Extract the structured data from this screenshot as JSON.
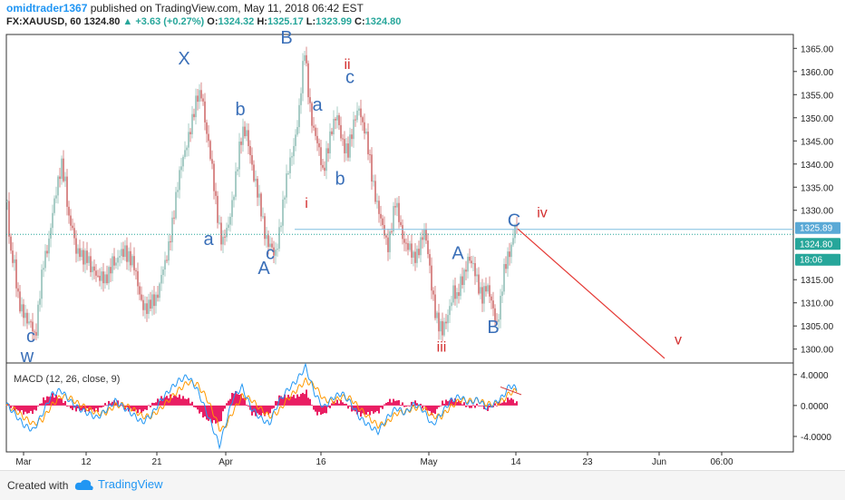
{
  "header": {
    "user": "omidtrader1367",
    "published": "published on TradingView.com, May 11, 2018 06:42 EST",
    "symbol": "FX:XAUUSD, 60",
    "last": "1324.80",
    "arrow": "▲",
    "change": "+3.63 (+0.27%)",
    "o_label": "O:",
    "o": "1324.32",
    "h_label": "H:",
    "h": "1325.17",
    "l_label": "L:",
    "l": "1323.99",
    "c_label": "C:",
    "c": "1324.80"
  },
  "footer": {
    "created_with": "Created with",
    "brand": "TradingView"
  },
  "colors": {
    "wave_blue": "#3a6fb8",
    "wave_red": "#d32f2f",
    "candle_up": "#a8ccc6",
    "candle_down": "#d98b8b",
    "level_line": "#7fbfe0",
    "price_dotted": "#26a69a",
    "macd_line": "#2196f3",
    "signal_line": "#ff9800",
    "hist": "#e91e63"
  },
  "chart_data": {
    "type": "candlestick",
    "symbol": "FX:XAUUSD",
    "interval": "60",
    "ylim": [
      1297,
      1368
    ],
    "y_ticks": [
      "1365.00",
      "1360.00",
      "1355.00",
      "1350.00",
      "1345.00",
      "1340.00",
      "1335.00",
      "1330.00",
      "1325.89",
      "1324.80",
      "1318:06",
      "1315.00",
      "1310.00",
      "1305.00",
      "1300.00"
    ],
    "x_ticks": [
      "Mar",
      "12",
      "21",
      "Apr",
      "16",
      "May",
      "14",
      "23",
      "Jun",
      "06:00"
    ],
    "price_markers": [
      {
        "label": "1325.89",
        "value": 1325.89,
        "color": "#5aa9d6"
      },
      {
        "label": "1324.80",
        "value": 1324.8,
        "color": "#26a69a"
      },
      {
        "label": "18:06",
        "value": 1320.0,
        "color": "#26a69a"
      }
    ],
    "horizontal_level": 1325.89,
    "price_path": [
      [
        0,
        1332
      ],
      [
        3,
        1320
      ],
      [
        8,
        1318
      ],
      [
        12,
        1312
      ],
      [
        17,
        1308
      ],
      [
        22,
        1305
      ],
      [
        27,
        1306
      ],
      [
        31,
        1303
      ],
      [
        35,
        1310
      ],
      [
        40,
        1318
      ],
      [
        45,
        1323
      ],
      [
        50,
        1330
      ],
      [
        55,
        1334
      ],
      [
        60,
        1340
      ],
      [
        64,
        1337
      ],
      [
        68,
        1328
      ],
      [
        72,
        1325
      ],
      [
        76,
        1321
      ],
      [
        80,
        1322
      ],
      [
        84,
        1320
      ],
      [
        88,
        1319
      ],
      [
        92,
        1317
      ],
      [
        96,
        1318
      ],
      [
        100,
        1316
      ],
      [
        104,
        1315
      ],
      [
        108,
        1314
      ],
      [
        112,
        1317
      ],
      [
        116,
        1320
      ],
      [
        120,
        1318
      ],
      [
        125,
        1320
      ],
      [
        130,
        1322
      ],
      [
        135,
        1320
      ],
      [
        140,
        1317
      ],
      [
        145,
        1313
      ],
      [
        150,
        1310
      ],
      [
        155,
        1308
      ],
      [
        160,
        1310
      ],
      [
        165,
        1312
      ],
      [
        170,
        1316
      ],
      [
        175,
        1318
      ],
      [
        178,
        1322
      ],
      [
        182,
        1328
      ],
      [
        186,
        1333
      ],
      [
        190,
        1337
      ],
      [
        195,
        1342
      ],
      [
        200,
        1347
      ],
      [
        205,
        1350
      ],
      [
        210,
        1354
      ],
      [
        215,
        1356
      ],
      [
        218,
        1350
      ],
      [
        222,
        1344
      ],
      [
        226,
        1338
      ],
      [
        230,
        1332
      ],
      [
        234,
        1327
      ],
      [
        237,
        1323
      ],
      [
        240,
        1324
      ],
      [
        244,
        1326
      ],
      [
        248,
        1332
      ],
      [
        252,
        1338
      ],
      [
        256,
        1343
      ],
      [
        260,
        1346
      ],
      [
        264,
        1347
      ],
      [
        268,
        1343
      ],
      [
        272,
        1337
      ],
      [
        276,
        1333
      ],
      [
        280,
        1330
      ],
      [
        284,
        1326
      ],
      [
        288,
        1323
      ],
      [
        292,
        1321
      ],
      [
        295,
        1319
      ],
      [
        298,
        1323
      ],
      [
        302,
        1329
      ],
      [
        306,
        1334
      ],
      [
        310,
        1338
      ],
      [
        314,
        1342
      ],
      [
        318,
        1347
      ],
      [
        322,
        1352
      ],
      [
        326,
        1360
      ],
      [
        328,
        1364
      ],
      [
        332,
        1356
      ],
      [
        336,
        1350
      ],
      [
        340,
        1346
      ],
      [
        344,
        1342
      ],
      [
        348,
        1338
      ],
      [
        352,
        1343
      ],
      [
        356,
        1346
      ],
      [
        360,
        1348
      ],
      [
        364,
        1350
      ],
      [
        368,
        1347
      ],
      [
        372,
        1344
      ],
      [
        376,
        1342
      ],
      [
        380,
        1346
      ],
      [
        384,
        1351
      ],
      [
        388,
        1353
      ],
      [
        392,
        1348
      ],
      [
        396,
        1345
      ],
      [
        400,
        1341
      ],
      [
        404,
        1336
      ],
      [
        408,
        1331
      ],
      [
        412,
        1327
      ],
      [
        416,
        1325
      ],
      [
        420,
        1323
      ],
      [
        424,
        1327
      ],
      [
        428,
        1331
      ],
      [
        432,
        1328
      ],
      [
        436,
        1325
      ],
      [
        440,
        1323
      ],
      [
        444,
        1321
      ],
      [
        448,
        1319
      ],
      [
        452,
        1321
      ],
      [
        456,
        1324
      ],
      [
        460,
        1325
      ],
      [
        464,
        1320
      ],
      [
        468,
        1314
      ],
      [
        472,
        1309
      ],
      [
        476,
        1305
      ],
      [
        480,
        1303
      ],
      [
        484,
        1306
      ],
      [
        488,
        1310
      ],
      [
        492,
        1313
      ],
      [
        496,
        1310
      ],
      [
        500,
        1314
      ],
      [
        504,
        1317
      ],
      [
        508,
        1320
      ],
      [
        512,
        1318
      ],
      [
        516,
        1316
      ],
      [
        520,
        1314
      ],
      [
        524,
        1312
      ],
      [
        528,
        1313
      ],
      [
        532,
        1311
      ],
      [
        536,
        1309
      ],
      [
        540,
        1306
      ],
      [
        544,
        1310
      ],
      [
        548,
        1316
      ],
      [
        552,
        1320
      ],
      [
        556,
        1323
      ],
      [
        560,
        1327
      ],
      [
        563,
        1325
      ]
    ],
    "projection": {
      "from": [
        571,
        1326
      ],
      "to": [
        733,
        1298
      ],
      "color": "#e53935"
    },
    "wave_labels": [
      {
        "text": "c",
        "x": 34,
        "y": 1301.5,
        "color": "blue"
      },
      {
        "text": "w",
        "x": 30,
        "y": 1297.2,
        "color": "blue"
      },
      {
        "text": "X",
        "x": 203,
        "y": 1361.5,
        "color": "blue"
      },
      {
        "text": "a",
        "x": 230,
        "y": 1322.5,
        "color": "blue"
      },
      {
        "text": "b",
        "x": 265,
        "y": 1350.5,
        "color": "blue"
      },
      {
        "text": "c",
        "x": 298,
        "y": 1319.5,
        "color": "blue"
      },
      {
        "text": "A",
        "x": 291,
        "y": 1316.2,
        "color": "blue"
      },
      {
        "text": "B",
        "x": 316,
        "y": 1366.0,
        "color": "blue"
      },
      {
        "text": "ii",
        "x": 383,
        "y": 1360.5,
        "color": "red"
      },
      {
        "text": "c",
        "x": 386,
        "y": 1357.5,
        "color": "blue"
      },
      {
        "text": "a",
        "x": 350,
        "y": 1351.5,
        "color": "blue"
      },
      {
        "text": "i",
        "x": 338,
        "y": 1330.5,
        "color": "red"
      },
      {
        "text": "b",
        "x": 375,
        "y": 1335.5,
        "color": "blue"
      },
      {
        "text": "iii",
        "x": 487,
        "y": 1299.5,
        "color": "red"
      },
      {
        "text": "A",
        "x": 505,
        "y": 1319.5,
        "color": "blue"
      },
      {
        "text": "B",
        "x": 544,
        "y": 1303.5,
        "color": "blue"
      },
      {
        "text": "C",
        "x": 567,
        "y": 1326.5,
        "color": "blue"
      },
      {
        "text": "iv",
        "x": 598,
        "y": 1328.5,
        "color": "red"
      },
      {
        "text": "v",
        "x": 748,
        "y": 1301.0,
        "color": "red"
      }
    ],
    "macd": {
      "label": "MACD (12, 26, close, 9)",
      "ylim": [
        -6,
        5.5
      ],
      "y_ticks": [
        "4.0000",
        "0.0000",
        "-4.0000"
      ],
      "macd_line": [
        [
          0,
          0.2
        ],
        [
          10,
          -1.2
        ],
        [
          20,
          -2.6
        ],
        [
          30,
          -3.2
        ],
        [
          40,
          -1.0
        ],
        [
          50,
          1.4
        ],
        [
          60,
          2.0
        ],
        [
          70,
          0.6
        ],
        [
          80,
          -0.4
        ],
        [
          90,
          -1.0
        ],
        [
          100,
          -1.6
        ],
        [
          110,
          -0.6
        ],
        [
          120,
          0.6
        ],
        [
          130,
          -0.3
        ],
        [
          140,
          -1.2
        ],
        [
          150,
          -2.2
        ],
        [
          160,
          -1.2
        ],
        [
          170,
          0.6
        ],
        [
          180,
          2.0
        ],
        [
          190,
          3.2
        ],
        [
          200,
          3.8
        ],
        [
          210,
          2.2
        ],
        [
          220,
          -0.6
        ],
        [
          230,
          -3.6
        ],
        [
          235,
          -5.2
        ],
        [
          240,
          -3.2
        ],
        [
          250,
          1.0
        ],
        [
          260,
          2.4
        ],
        [
          270,
          -0.3
        ],
        [
          280,
          -1.6
        ],
        [
          290,
          -2.4
        ],
        [
          300,
          0.4
        ],
        [
          310,
          2.0
        ],
        [
          320,
          3.2
        ],
        [
          330,
          5.0
        ],
        [
          340,
          1.6
        ],
        [
          350,
          -0.3
        ],
        [
          360,
          1.0
        ],
        [
          370,
          1.6
        ],
        [
          380,
          0.3
        ],
        [
          390,
          -1.6
        ],
        [
          400,
          -2.6
        ],
        [
          410,
          -3.4
        ],
        [
          420,
          -1.6
        ],
        [
          430,
          -0.3
        ],
        [
          440,
          -1.0
        ],
        [
          450,
          0.2
        ],
        [
          460,
          -0.6
        ],
        [
          470,
          -2.6
        ],
        [
          480,
          -1.0
        ],
        [
          490,
          0.6
        ],
        [
          500,
          1.2
        ],
        [
          510,
          0.3
        ],
        [
          520,
          0.8
        ],
        [
          530,
          -0.3
        ],
        [
          540,
          0.4
        ],
        [
          548,
          1.2
        ],
        [
          555,
          2.6
        ],
        [
          563,
          2.2
        ]
      ],
      "signal_line": [
        [
          0,
          0.0
        ],
        [
          10,
          -0.6
        ],
        [
          20,
          -1.6
        ],
        [
          30,
          -2.4
        ],
        [
          40,
          -1.8
        ],
        [
          50,
          0.0
        ],
        [
          60,
          1.2
        ],
        [
          70,
          1.0
        ],
        [
          80,
          0.2
        ],
        [
          90,
          -0.4
        ],
        [
          100,
          -1.0
        ],
        [
          110,
          -0.9
        ],
        [
          120,
          0.0
        ],
        [
          130,
          0.1
        ],
        [
          140,
          -0.5
        ],
        [
          150,
          -1.4
        ],
        [
          160,
          -1.4
        ],
        [
          170,
          -0.4
        ],
        [
          180,
          0.8
        ],
        [
          190,
          2.0
        ],
        [
          200,
          3.0
        ],
        [
          210,
          2.8
        ],
        [
          220,
          1.2
        ],
        [
          230,
          -1.4
        ],
        [
          235,
          -3.0
        ],
        [
          240,
          -3.0
        ],
        [
          250,
          -0.8
        ],
        [
          260,
          1.2
        ],
        [
          270,
          0.8
        ],
        [
          280,
          -0.4
        ],
        [
          290,
          -1.4
        ],
        [
          300,
          -0.8
        ],
        [
          310,
          0.8
        ],
        [
          320,
          2.0
        ],
        [
          330,
          3.2
        ],
        [
          340,
          2.6
        ],
        [
          350,
          0.8
        ],
        [
          360,
          0.5
        ],
        [
          370,
          1.1
        ],
        [
          380,
          0.9
        ],
        [
          390,
          -0.4
        ],
        [
          400,
          -1.6
        ],
        [
          410,
          -2.6
        ],
        [
          420,
          -2.2
        ],
        [
          430,
          -1.0
        ],
        [
          440,
          -0.8
        ],
        [
          450,
          -0.3
        ],
        [
          460,
          -0.3
        ],
        [
          470,
          -1.4
        ],
        [
          480,
          -1.4
        ],
        [
          490,
          -0.2
        ],
        [
          500,
          0.7
        ],
        [
          510,
          0.6
        ],
        [
          520,
          0.7
        ],
        [
          530,
          0.2
        ],
        [
          540,
          0.2
        ],
        [
          548,
          0.7
        ],
        [
          555,
          1.6
        ],
        [
          563,
          2.0
        ]
      ],
      "signal_projection": {
        "from": [
          552,
          2.4
        ],
        "to": [
          575,
          1.4
        ]
      }
    }
  }
}
